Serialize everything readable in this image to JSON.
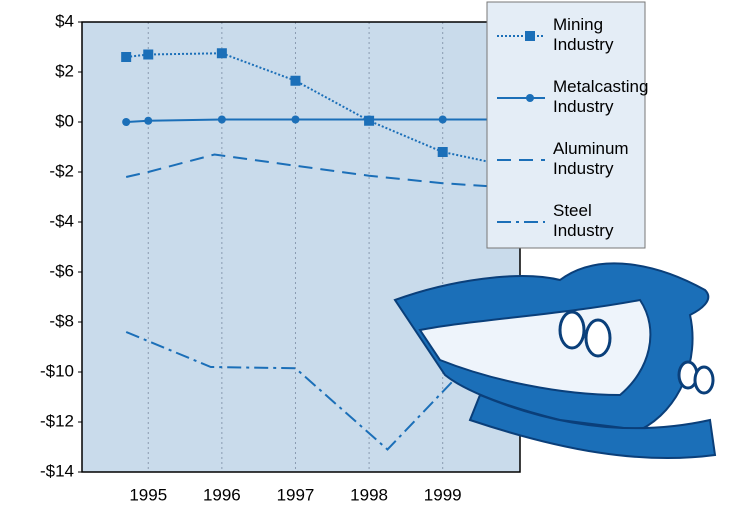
{
  "chart_data": {
    "type": "line",
    "xlim": [
      1994.1,
      2000.05
    ],
    "xticks": [
      1995,
      1996,
      1997,
      1998,
      1999
    ],
    "ylim": [
      -14,
      4
    ],
    "yticks": [
      {
        "value": 4,
        "label": "$4"
      },
      {
        "value": 2,
        "label": "$2"
      },
      {
        "value": 0,
        "label": "$0"
      },
      {
        "value": -2,
        "label": "-$2"
      },
      {
        "value": -4,
        "label": "-$4"
      },
      {
        "value": -6,
        "label": "-$6"
      },
      {
        "value": -8,
        "label": "-$8"
      },
      {
        "value": -10,
        "label": "-$10"
      },
      {
        "value": -12,
        "label": "-$12"
      },
      {
        "value": -14,
        "label": "-$14"
      }
    ],
    "grid": true,
    "legend": "upper right",
    "series": [
      {
        "name": "Mining Industry",
        "color": "#1b6fb8",
        "dash": "dotted",
        "marker": "square",
        "x": [
          1994.7,
          1995,
          1996,
          1997,
          1998,
          1999,
          1999.8
        ],
        "values": [
          2.6,
          2.7,
          2.75,
          1.65,
          0.05,
          -1.2,
          -1.7
        ]
      },
      {
        "name": "Metalcasting Industry",
        "color": "#1b6fb8",
        "dash": "solid",
        "marker": "circle",
        "x": [
          1994.7,
          1995,
          1996,
          1997,
          1998,
          1999,
          1999.8
        ],
        "values": [
          0,
          0.05,
          0.1,
          0.1,
          0.1,
          0.1,
          0.1
        ]
      },
      {
        "name": "Aluminum Industry",
        "color": "#1b6fb8",
        "dash": "dashed",
        "x": [
          1994.7,
          1995,
          1995.9,
          1997,
          1998,
          1999,
          1999.8
        ],
        "values": [
          -2.2,
          -2.0,
          -1.3,
          -1.75,
          -2.15,
          -2.45,
          -2.6
        ]
      },
      {
        "name": "Steel Industry",
        "color": "#1b6fb8",
        "dash": "dashdot",
        "x": [
          1994.7,
          1995.85,
          1997,
          1998.25,
          1999.45
        ],
        "values": [
          -8.4,
          -9.8,
          -9.85,
          -13.1,
          -9.4
        ]
      }
    ]
  }
}
